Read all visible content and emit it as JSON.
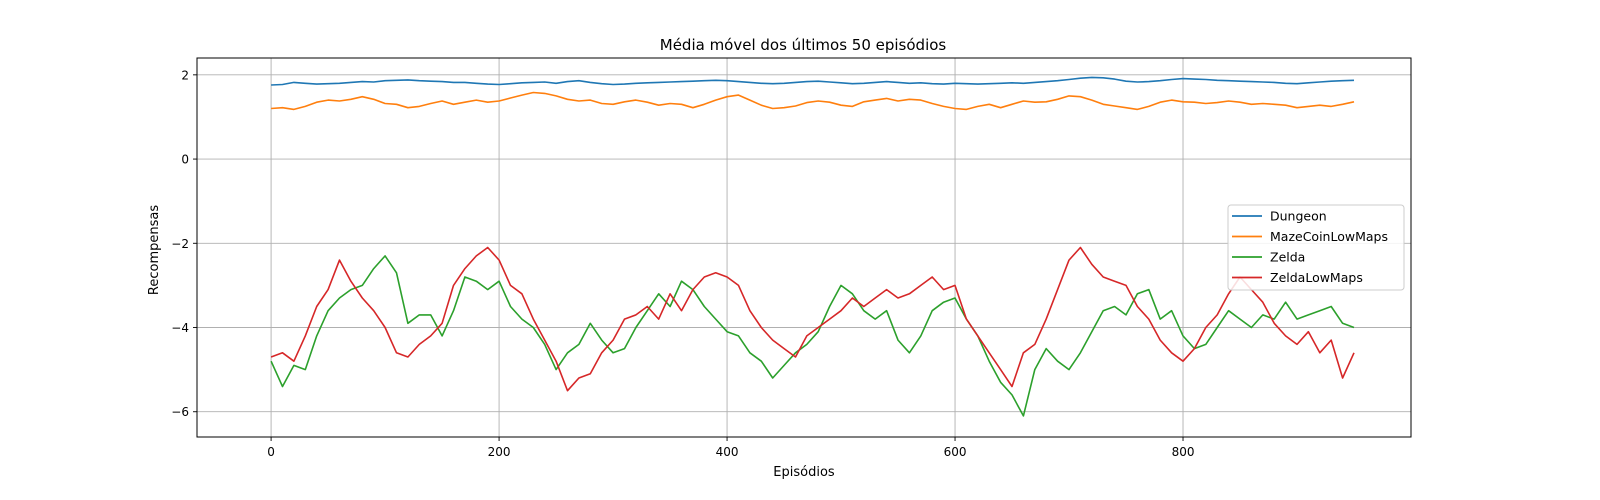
{
  "chart_data": {
    "type": "line",
    "title": "Média móvel dos últimos 50 episódios",
    "xlabel": "Episódios",
    "ylabel": "Recompensas",
    "xlim": [
      -65,
      1000
    ],
    "ylim": [
      -6.6,
      2.4
    ],
    "xticks": [
      0,
      200,
      400,
      600,
      800
    ],
    "yticks": [
      -6,
      -4,
      -2,
      0,
      2
    ],
    "grid": true,
    "legend_position": "center-right",
    "x": [
      0,
      10,
      20,
      30,
      40,
      50,
      60,
      70,
      80,
      90,
      100,
      110,
      120,
      130,
      140,
      150,
      160,
      170,
      180,
      190,
      200,
      210,
      220,
      230,
      240,
      250,
      260,
      270,
      280,
      290,
      300,
      310,
      320,
      330,
      340,
      350,
      360,
      370,
      380,
      390,
      400,
      410,
      420,
      430,
      440,
      450,
      460,
      470,
      480,
      490,
      500,
      510,
      520,
      530,
      540,
      550,
      560,
      570,
      580,
      590,
      600,
      610,
      620,
      630,
      640,
      650,
      660,
      670,
      680,
      690,
      700,
      710,
      720,
      730,
      740,
      750,
      760,
      770,
      780,
      790,
      800,
      810,
      820,
      830,
      840,
      850,
      860,
      870,
      880,
      890,
      900,
      910,
      920,
      930,
      940,
      950
    ],
    "series": [
      {
        "name": "Dungeon",
        "color": "#1f77b4",
        "values": [
          1.76,
          1.77,
          1.82,
          1.8,
          1.78,
          1.79,
          1.8,
          1.82,
          1.84,
          1.83,
          1.86,
          1.87,
          1.88,
          1.86,
          1.85,
          1.84,
          1.82,
          1.82,
          1.8,
          1.78,
          1.77,
          1.79,
          1.81,
          1.82,
          1.83,
          1.8,
          1.84,
          1.86,
          1.82,
          1.79,
          1.77,
          1.78,
          1.8,
          1.81,
          1.82,
          1.83,
          1.84,
          1.85,
          1.86,
          1.87,
          1.86,
          1.84,
          1.82,
          1.8,
          1.79,
          1.8,
          1.82,
          1.84,
          1.85,
          1.83,
          1.81,
          1.79,
          1.8,
          1.82,
          1.84,
          1.82,
          1.8,
          1.81,
          1.79,
          1.78,
          1.8,
          1.79,
          1.78,
          1.79,
          1.8,
          1.81,
          1.8,
          1.82,
          1.84,
          1.86,
          1.89,
          1.92,
          1.94,
          1.93,
          1.9,
          1.85,
          1.83,
          1.84,
          1.86,
          1.89,
          1.91,
          1.9,
          1.89,
          1.87,
          1.86,
          1.85,
          1.84,
          1.83,
          1.82,
          1.8,
          1.79,
          1.81,
          1.83,
          1.85,
          1.86,
          1.87
        ]
      },
      {
        "name": "MazeCoinLowMaps",
        "color": "#ff7f0e",
        "values": [
          1.2,
          1.22,
          1.18,
          1.25,
          1.35,
          1.4,
          1.38,
          1.42,
          1.48,
          1.42,
          1.32,
          1.3,
          1.22,
          1.25,
          1.32,
          1.38,
          1.3,
          1.35,
          1.4,
          1.35,
          1.38,
          1.45,
          1.52,
          1.58,
          1.56,
          1.5,
          1.42,
          1.38,
          1.4,
          1.32,
          1.3,
          1.36,
          1.4,
          1.35,
          1.28,
          1.32,
          1.3,
          1.22,
          1.3,
          1.4,
          1.48,
          1.52,
          1.4,
          1.28,
          1.2,
          1.22,
          1.26,
          1.34,
          1.38,
          1.35,
          1.28,
          1.25,
          1.36,
          1.4,
          1.44,
          1.38,
          1.42,
          1.4,
          1.32,
          1.25,
          1.2,
          1.18,
          1.25,
          1.3,
          1.22,
          1.3,
          1.38,
          1.35,
          1.36,
          1.42,
          1.5,
          1.48,
          1.4,
          1.3,
          1.26,
          1.22,
          1.18,
          1.25,
          1.35,
          1.4,
          1.36,
          1.35,
          1.32,
          1.34,
          1.38,
          1.35,
          1.3,
          1.32,
          1.3,
          1.28,
          1.22,
          1.25,
          1.28,
          1.25,
          1.3,
          1.36
        ]
      },
      {
        "name": "Zelda",
        "color": "#2ca02c",
        "values": [
          -4.8,
          -5.4,
          -4.9,
          -5.0,
          -4.2,
          -3.6,
          -3.3,
          -3.1,
          -3.0,
          -2.6,
          -2.3,
          -2.7,
          -3.9,
          -3.7,
          -3.7,
          -4.2,
          -3.6,
          -2.8,
          -2.9,
          -3.1,
          -2.9,
          -3.5,
          -3.8,
          -4.0,
          -4.4,
          -5.0,
          -4.6,
          -4.4,
          -3.9,
          -4.3,
          -4.6,
          -4.5,
          -4.0,
          -3.6,
          -3.2,
          -3.5,
          -2.9,
          -3.1,
          -3.5,
          -3.8,
          -4.1,
          -4.2,
          -4.6,
          -4.8,
          -5.2,
          -4.9,
          -4.6,
          -4.4,
          -4.1,
          -3.5,
          -3.0,
          -3.2,
          -3.6,
          -3.8,
          -3.6,
          -4.3,
          -4.6,
          -4.2,
          -3.6,
          -3.4,
          -3.3,
          -3.8,
          -4.2,
          -4.8,
          -5.3,
          -5.6,
          -6.1,
          -5.0,
          -4.5,
          -4.8,
          -5.0,
          -4.6,
          -4.1,
          -3.6,
          -3.5,
          -3.7,
          -3.2,
          -3.1,
          -3.8,
          -3.6,
          -4.2,
          -4.5,
          -4.4,
          -4.0,
          -3.6,
          -3.8,
          -4.0,
          -3.7,
          -3.8,
          -3.4,
          -3.8,
          -3.7,
          -3.6,
          -3.5,
          -3.9,
          -4.0
        ]
      },
      {
        "name": "ZeldaLowMaps",
        "color": "#d62728",
        "values": [
          -4.7,
          -4.6,
          -4.8,
          -4.2,
          -3.5,
          -3.1,
          -2.4,
          -2.9,
          -3.3,
          -3.6,
          -4.0,
          -4.6,
          -4.7,
          -4.4,
          -4.2,
          -3.9,
          -3.0,
          -2.6,
          -2.3,
          -2.1,
          -2.4,
          -3.0,
          -3.2,
          -3.8,
          -4.3,
          -4.8,
          -5.5,
          -5.2,
          -5.1,
          -4.6,
          -4.3,
          -3.8,
          -3.7,
          -3.5,
          -3.8,
          -3.2,
          -3.6,
          -3.1,
          -2.8,
          -2.7,
          -2.8,
          -3.0,
          -3.6,
          -4.0,
          -4.3,
          -4.5,
          -4.7,
          -4.2,
          -4.0,
          -3.8,
          -3.6,
          -3.3,
          -3.5,
          -3.3,
          -3.1,
          -3.3,
          -3.2,
          -3.0,
          -2.8,
          -3.1,
          -3.0,
          -3.8,
          -4.2,
          -4.6,
          -5.0,
          -5.4,
          -4.6,
          -4.4,
          -3.8,
          -3.1,
          -2.4,
          -2.1,
          -2.5,
          -2.8,
          -2.9,
          -3.0,
          -3.5,
          -3.8,
          -4.3,
          -4.6,
          -4.8,
          -4.5,
          -4.0,
          -3.7,
          -3.2,
          -2.8,
          -3.1,
          -3.4,
          -3.9,
          -4.2,
          -4.4,
          -4.1,
          -4.6,
          -4.3,
          -5.2,
          -4.6
        ]
      }
    ]
  }
}
